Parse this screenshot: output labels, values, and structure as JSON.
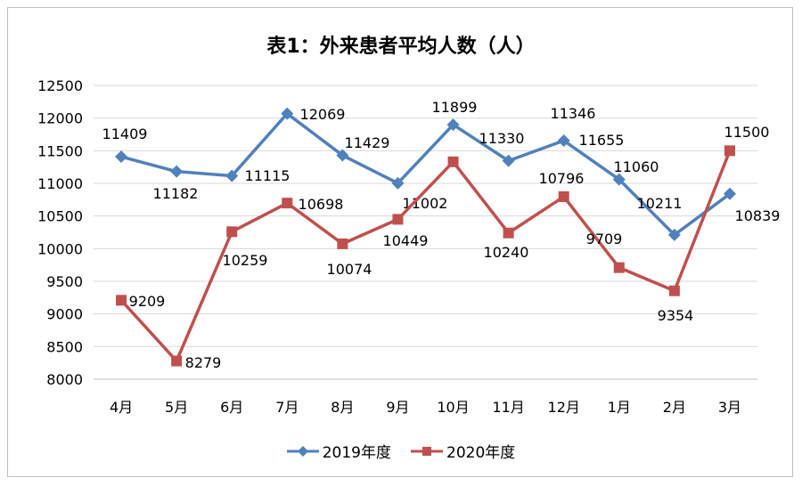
{
  "chart_data": {
    "type": "line",
    "title": "表1：外来患者平均人数（人）",
    "categories": [
      "4月",
      "5月",
      "6月",
      "7月",
      "8月",
      "9月",
      "10月",
      "11月",
      "12月",
      "1月",
      "2月",
      "3月"
    ],
    "series": [
      {
        "name": "2019年度",
        "color": "#4f81bd",
        "marker": "diamond",
        "values": [
          11409,
          11182,
          11115,
          12069,
          11429,
          11002,
          11899,
          11346,
          11655,
          11060,
          10211,
          10839
        ]
      },
      {
        "name": "2020年度",
        "color": "#c0504d",
        "marker": "square",
        "values": [
          9209,
          8279,
          10259,
          10698,
          10074,
          10449,
          11330,
          10240,
          10796,
          9709,
          9354,
          11500
        ]
      }
    ],
    "ylim": [
      8000,
      12500
    ],
    "yticks": [
      8000,
      8500,
      9000,
      9500,
      10000,
      10500,
      11000,
      11500,
      12000,
      12500
    ],
    "grid": true,
    "legend": "bottom",
    "xlabel": "",
    "ylabel": ""
  }
}
